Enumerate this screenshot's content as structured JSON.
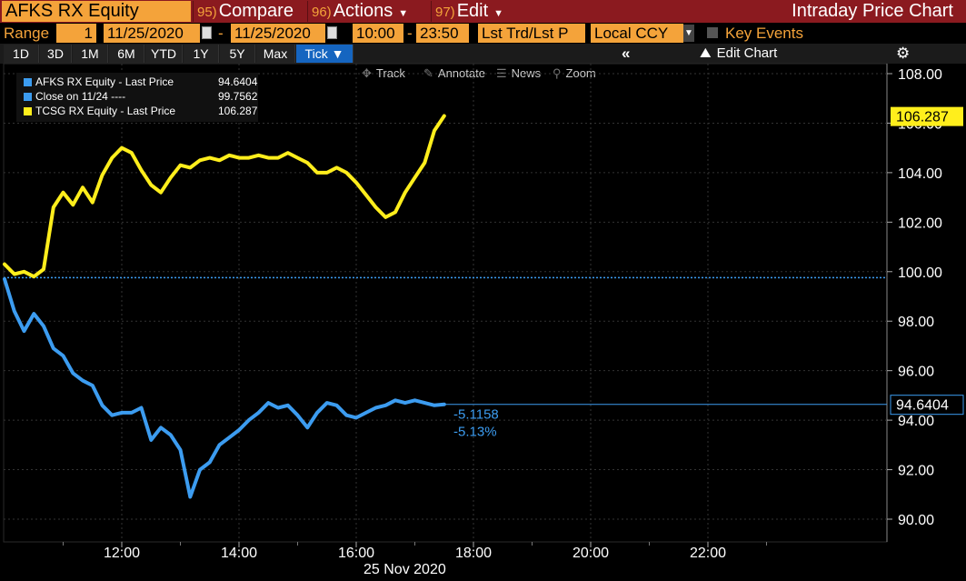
{
  "header": {
    "ticker": "AFKS RX Equity",
    "compare": {
      "num": "95)",
      "label": "Compare"
    },
    "actions": {
      "num": "96)",
      "label": "Actions"
    },
    "edit": {
      "num": "97)",
      "label": "Edit"
    },
    "app_title": "Intraday Price Chart"
  },
  "range": {
    "label": "Range",
    "count": "1",
    "start_date": "11/25/2020",
    "end_date": "11/25/2020",
    "start_time": "10:00",
    "end_time": "23:50",
    "price_field": "Lst Trd/Lst P",
    "currency": "Local CCY",
    "key_events": "Key Events"
  },
  "periods": [
    "1D",
    "3D",
    "1M",
    "6M",
    "YTD",
    "1Y",
    "5Y",
    "Max",
    "Tick ▼"
  ],
  "period_active": "Tick ▼",
  "edit_chart": "Edit Chart",
  "tools": {
    "track": "Track",
    "annotate": "Annotate",
    "news": "News",
    "zoom": "Zoom"
  },
  "legend": [
    {
      "label": "AFKS RX Equity - Last Price",
      "value": "94.6404",
      "color": "#3c9cf0"
    },
    {
      "label": "Close on 11/24 ----",
      "value": "99.7562",
      "color": "#3c9cf0"
    },
    {
      "label": "TCSG RX Equity - Last Price",
      "value": "106.287",
      "color": "#ffee1c"
    }
  ],
  "chart_data": {
    "type": "line",
    "x_axis": {
      "ticks": [
        "12:00",
        "14:00",
        "16:00",
        "18:00",
        "20:00",
        "22:00"
      ],
      "date_label": "25 Nov 2020",
      "range": [
        "10:00",
        "23:50"
      ]
    },
    "ylim": [
      89,
      109
    ],
    "y_ticks": [
      "108.00",
      "106.00",
      "104.00",
      "102.00",
      "100.00",
      "98.00",
      "96.00",
      "94.00",
      "92.00",
      "90.00"
    ],
    "series": [
      {
        "name": "AFKS RX Equity - Last Price",
        "color": "#3c9cf0",
        "last_label": "94.6404",
        "change_abs": "-5.1158",
        "change_pct": "-5.13%",
        "x": [
          "10:00",
          "10:10",
          "10:20",
          "10:30",
          "10:40",
          "10:50",
          "11:00",
          "11:10",
          "11:20",
          "11:30",
          "11:40",
          "11:50",
          "12:00",
          "12:10",
          "12:20",
          "12:30",
          "12:40",
          "12:50",
          "13:00",
          "13:10",
          "13:20",
          "13:30",
          "13:40",
          "13:50",
          "14:00",
          "14:10",
          "14:20",
          "14:30",
          "14:40",
          "14:50",
          "15:00",
          "15:10",
          "15:20",
          "15:30",
          "15:40",
          "15:50",
          "16:00",
          "16:10",
          "16:20",
          "16:30",
          "16:40",
          "16:50",
          "17:00",
          "17:10",
          "17:20",
          "17:30"
        ],
        "y": [
          99.7,
          98.4,
          97.6,
          98.3,
          97.8,
          96.9,
          96.6,
          95.9,
          95.6,
          95.4,
          94.6,
          94.2,
          94.3,
          94.3,
          94.5,
          93.2,
          93.7,
          93.4,
          92.8,
          90.9,
          92.0,
          92.3,
          93.0,
          93.3,
          93.6,
          94.0,
          94.3,
          94.7,
          94.5,
          94.6,
          94.2,
          93.7,
          94.3,
          94.7,
          94.6,
          94.2,
          94.1,
          94.3,
          94.5,
          94.6,
          94.8,
          94.7,
          94.8,
          94.7,
          94.6,
          94.64
        ]
      },
      {
        "name": "Close on 11/24",
        "color": "#3c9cf0",
        "dashed": true,
        "y": 99.7562
      },
      {
        "name": "TCSG RX Equity - Last Price",
        "color": "#ffee1c",
        "last_label": "106.287",
        "x": [
          "10:00",
          "10:10",
          "10:20",
          "10:30",
          "10:40",
          "10:50",
          "11:00",
          "11:10",
          "11:20",
          "11:30",
          "11:40",
          "11:50",
          "12:00",
          "12:10",
          "12:20",
          "12:30",
          "12:40",
          "12:50",
          "13:00",
          "13:10",
          "13:20",
          "13:30",
          "13:40",
          "13:50",
          "14:00",
          "14:10",
          "14:20",
          "14:30",
          "14:40",
          "14:50",
          "15:00",
          "15:10",
          "15:20",
          "15:30",
          "15:40",
          "15:50",
          "16:00",
          "16:10",
          "16:20",
          "16:30",
          "16:40",
          "16:50",
          "17:00",
          "17:10",
          "17:20",
          "17:30"
        ],
        "y": [
          100.3,
          99.9,
          100.0,
          99.8,
          100.1,
          102.6,
          103.2,
          102.7,
          103.4,
          102.8,
          103.9,
          104.6,
          105.0,
          104.8,
          104.1,
          103.5,
          103.2,
          103.8,
          104.3,
          104.2,
          104.5,
          104.6,
          104.5,
          104.7,
          104.6,
          104.6,
          104.7,
          104.6,
          104.6,
          104.8,
          104.6,
          104.4,
          104.0,
          104.0,
          104.2,
          104.0,
          103.6,
          103.1,
          102.6,
          102.2,
          102.4,
          103.2,
          103.8,
          104.4,
          105.7,
          106.29
        ]
      }
    ]
  }
}
